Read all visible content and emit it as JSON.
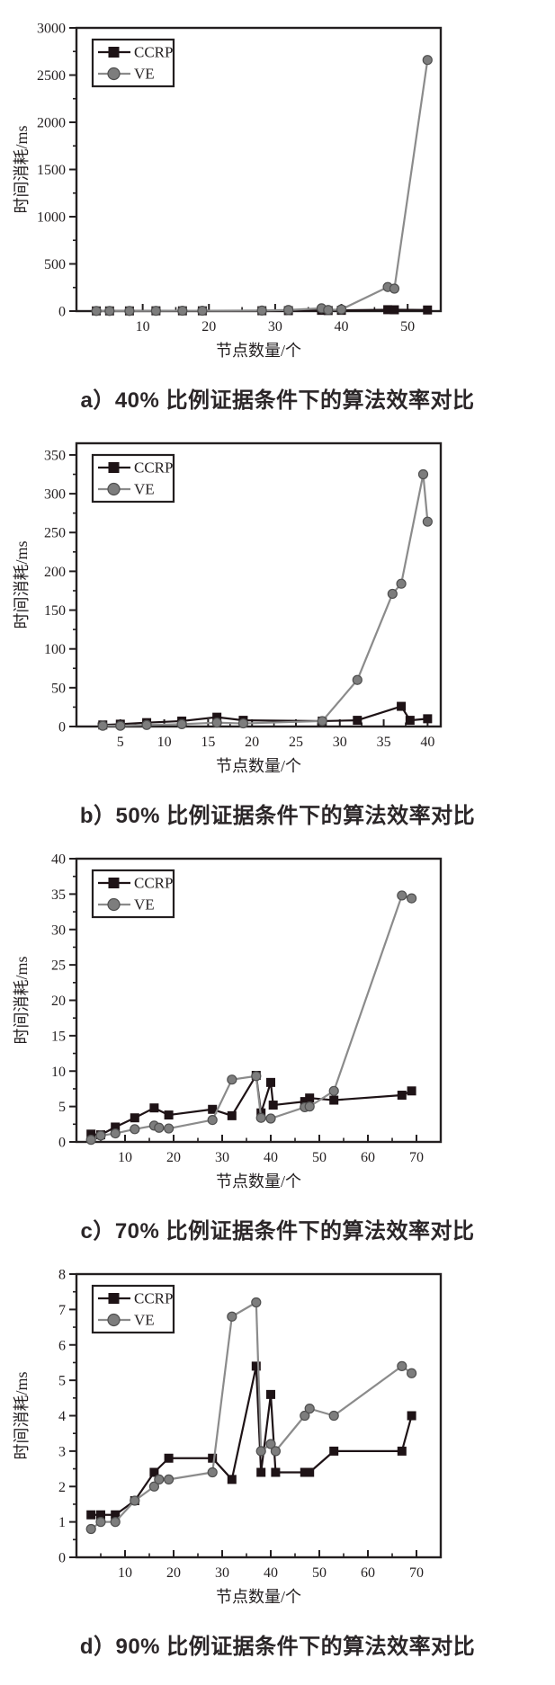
{
  "style": {
    "background": "#ffffff",
    "axis_color": "#231f20",
    "caption_color": "#2b2628",
    "ccrp_color": "#1e1316",
    "ve_color": "#8b8b8b"
  },
  "legend": {
    "items": [
      "CCRP",
      "VE"
    ]
  },
  "chart_data": [
    {
      "type": "line",
      "title": "a）40% 比例证据条件下的算法效率对比",
      "xlabel": "节点数量/个",
      "ylabel": "时间消耗/ms",
      "xlim": [
        0,
        55
      ],
      "ylim": [
        0,
        3000
      ],
      "xticks": [
        10,
        20,
        30,
        40,
        50
      ],
      "yticks": [
        0,
        500,
        1000,
        1500,
        2000,
        2500,
        3000
      ],
      "grid": false,
      "legend_position": "top-left",
      "series": [
        {
          "name": "CCRP",
          "marker": "square",
          "color": "#1e1316",
          "marker_fill": "#1e1316",
          "marker_stroke": "#1e1316",
          "points": [
            [
              3,
              2
            ],
            [
              5,
              2
            ],
            [
              8,
              2
            ],
            [
              12,
              3
            ],
            [
              16,
              3
            ],
            [
              19,
              3
            ],
            [
              28,
              4
            ],
            [
              32,
              5
            ],
            [
              37,
              8
            ],
            [
              38,
              6
            ],
            [
              40,
              8
            ],
            [
              47,
              15
            ],
            [
              48,
              14
            ],
            [
              53,
              12
            ]
          ]
        },
        {
          "name": "VE",
          "marker": "circle",
          "color": "#8b8b8b",
          "marker_fill": "#7d7d7d",
          "marker_stroke": "#4f4f4f",
          "points": [
            [
              3,
              2
            ],
            [
              5,
              2
            ],
            [
              8,
              2
            ],
            [
              12,
              3
            ],
            [
              16,
              4
            ],
            [
              19,
              4
            ],
            [
              28,
              6
            ],
            [
              32,
              12
            ],
            [
              37,
              30
            ],
            [
              38,
              12
            ],
            [
              40,
              18
            ],
            [
              47,
              255
            ],
            [
              48,
              238
            ],
            [
              53,
              2660
            ]
          ]
        }
      ]
    },
    {
      "type": "line",
      "title": "b）50% 比例证据条件下的算法效率对比",
      "xlabel": "节点数量/个",
      "ylabel": "时间消耗/ms",
      "xlim": [
        0,
        41.5
      ],
      "ylim": [
        0,
        365
      ],
      "xticks": [
        5,
        10,
        15,
        20,
        25,
        30,
        35,
        40
      ],
      "yticks": [
        0,
        50,
        100,
        150,
        200,
        250,
        300,
        350
      ],
      "grid": false,
      "legend_position": "top-left",
      "series": [
        {
          "name": "CCRP",
          "marker": "square",
          "color": "#1e1316",
          "marker_fill": "#1e1316",
          "marker_stroke": "#1e1316",
          "points": [
            [
              3,
              2
            ],
            [
              5,
              3
            ],
            [
              8,
              5
            ],
            [
              12,
              7
            ],
            [
              16,
              12
            ],
            [
              19,
              8
            ],
            [
              28,
              7
            ],
            [
              32,
              8
            ],
            [
              37,
              26
            ],
            [
              38,
              8
            ],
            [
              40,
              10
            ]
          ]
        },
        {
          "name": "VE",
          "marker": "circle",
          "color": "#8b8b8b",
          "marker_fill": "#7d7d7d",
          "marker_stroke": "#4f4f4f",
          "points": [
            [
              3,
              1
            ],
            [
              5,
              1
            ],
            [
              8,
              2
            ],
            [
              12,
              3
            ],
            [
              16,
              5
            ],
            [
              19,
              4
            ],
            [
              28,
              7
            ],
            [
              32,
              60
            ],
            [
              36,
              171
            ],
            [
              37,
              184
            ],
            [
              39.5,
              325
            ],
            [
              40,
              264
            ]
          ]
        }
      ]
    },
    {
      "type": "line",
      "title": "c）70% 比例证据条件下的算法效率对比",
      "xlabel": "节点数量/个",
      "ylabel": "时间消耗/ms",
      "xlim": [
        0,
        75
      ],
      "ylim": [
        0,
        40
      ],
      "xticks": [
        10,
        20,
        30,
        40,
        50,
        60,
        70
      ],
      "yticks": [
        0,
        5,
        10,
        15,
        20,
        25,
        30,
        35,
        40
      ],
      "grid": false,
      "legend_position": "top-left",
      "series": [
        {
          "name": "CCRP",
          "marker": "square",
          "color": "#1e1316",
          "marker_fill": "#1e1316",
          "marker_stroke": "#1e1316",
          "points": [
            [
              3,
              1.1
            ],
            [
              5,
              1.0
            ],
            [
              8,
              2.1
            ],
            [
              12,
              3.4
            ],
            [
              16,
              4.8
            ],
            [
              19,
              3.8
            ],
            [
              28,
              4.6
            ],
            [
              32,
              3.7
            ],
            [
              37,
              9.4
            ],
            [
              38,
              4.1
            ],
            [
              40,
              8.4
            ],
            [
              40.5,
              5.2
            ],
            [
              47,
              5.7
            ],
            [
              48,
              6.2
            ],
            [
              53,
              5.9
            ],
            [
              67,
              6.6
            ],
            [
              69,
              7.2
            ]
          ]
        },
        {
          "name": "VE",
          "marker": "circle",
          "color": "#8b8b8b",
          "marker_fill": "#7d7d7d",
          "marker_stroke": "#4f4f4f",
          "points": [
            [
              3,
              0.3
            ],
            [
              5,
              0.9
            ],
            [
              8,
              1.2
            ],
            [
              12,
              1.8
            ],
            [
              16,
              2.3
            ],
            [
              17,
              2.0
            ],
            [
              19,
              1.9
            ],
            [
              28,
              3.1
            ],
            [
              32,
              8.8
            ],
            [
              37,
              9.3
            ],
            [
              38,
              3.4
            ],
            [
              40,
              3.3
            ],
            [
              47,
              4.9
            ],
            [
              48,
              5.0
            ],
            [
              53,
              7.2
            ],
            [
              67,
              34.8
            ],
            [
              69,
              34.4
            ]
          ]
        }
      ]
    },
    {
      "type": "line",
      "title": "d）90% 比例证据条件下的算法效率对比",
      "xlabel": "节点数量/个",
      "ylabel": "时间消耗/ms",
      "xlim": [
        0,
        75
      ],
      "ylim": [
        0,
        8
      ],
      "xticks": [
        10,
        20,
        30,
        40,
        50,
        60,
        70
      ],
      "yticks": [
        0,
        1,
        2,
        3,
        4,
        5,
        6,
        7,
        8
      ],
      "grid": false,
      "legend_position": "top-left",
      "series": [
        {
          "name": "CCRP",
          "marker": "square",
          "color": "#1e1316",
          "marker_fill": "#1e1316",
          "marker_stroke": "#1e1316",
          "points": [
            [
              3,
              1.2
            ],
            [
              5,
              1.2
            ],
            [
              8,
              1.2
            ],
            [
              12,
              1.6
            ],
            [
              16,
              2.4
            ],
            [
              19,
              2.8
            ],
            [
              28,
              2.8
            ],
            [
              32,
              2.2
            ],
            [
              37,
              5.4
            ],
            [
              38,
              2.4
            ],
            [
              40,
              4.6
            ],
            [
              41,
              2.4
            ],
            [
              47,
              2.4
            ],
            [
              48,
              2.4
            ],
            [
              53,
              3.0
            ],
            [
              67,
              3.0
            ],
            [
              69,
              4.0
            ]
          ]
        },
        {
          "name": "VE",
          "marker": "circle",
          "color": "#8b8b8b",
          "marker_fill": "#7d7d7d",
          "marker_stroke": "#4f4f4f",
          "points": [
            [
              3,
              0.8
            ],
            [
              5,
              1.0
            ],
            [
              8,
              1.0
            ],
            [
              12,
              1.6
            ],
            [
              16,
              2.0
            ],
            [
              17,
              2.2
            ],
            [
              19,
              2.2
            ],
            [
              28,
              2.4
            ],
            [
              32,
              6.8
            ],
            [
              37,
              7.2
            ],
            [
              38,
              3.0
            ],
            [
              40,
              3.2
            ],
            [
              41,
              3.0
            ],
            [
              47,
              4.0
            ],
            [
              48,
              4.2
            ],
            [
              53,
              4.0
            ],
            [
              67,
              5.4
            ],
            [
              69,
              5.2
            ]
          ]
        }
      ]
    }
  ]
}
